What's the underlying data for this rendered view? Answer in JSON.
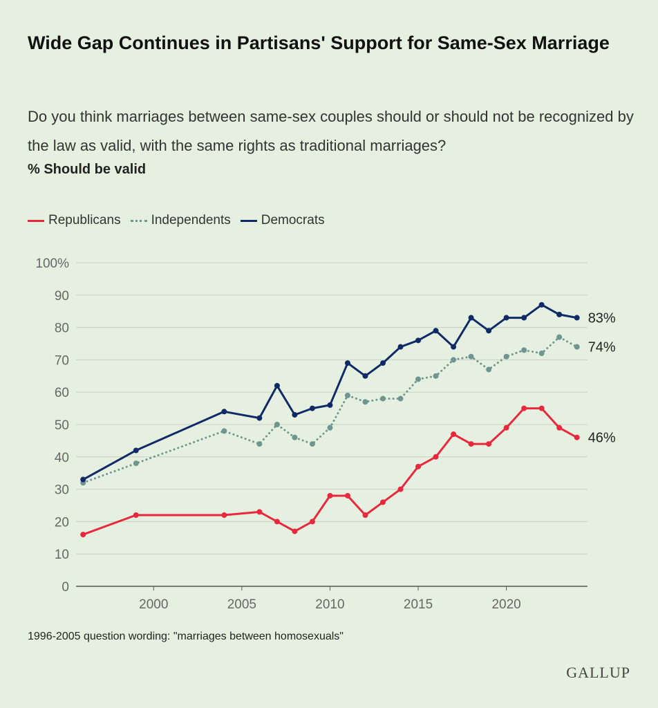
{
  "header": {
    "title": "Wide Gap Continues in Partisans' Support for Same-Sex Marriage",
    "subtitle": "Do you think marriages between same-sex couples should or should not be recognized by the law as valid, with the same rights as traditional marriages?",
    "measure": "% Should be valid"
  },
  "footnote": "1996-2005 question wording: \"marriages between homosexuals\"",
  "brand": "GALLUP",
  "colors": {
    "republicans": "#e8283c",
    "independents": "#6e9590",
    "democrats": "#0f2a66",
    "grid": "#c5d3c0",
    "axis_text": "#666666"
  },
  "chart_data": {
    "type": "line",
    "xlim": [
      1995.6,
      2024.6
    ],
    "ylim": [
      0,
      100
    ],
    "y_ticks": [
      0,
      10,
      20,
      30,
      40,
      50,
      60,
      70,
      80,
      90,
      100
    ],
    "y_tick_labels": [
      "0",
      "10",
      "20",
      "30",
      "40",
      "50",
      "60",
      "70",
      "80",
      "90",
      "100%"
    ],
    "x_ticks": [
      2000,
      2005,
      2010,
      2015,
      2020
    ],
    "x_tick_labels": [
      "2000",
      "2005",
      "2010",
      "2015",
      "2020"
    ],
    "grid": true,
    "legend_position": "top-left",
    "series": [
      {
        "name": "Republicans",
        "style": "solid",
        "color": "#e8283c",
        "end_label": "46%",
        "x": [
          1996,
          1999,
          2004,
          2006,
          2007,
          2008,
          2009,
          2010,
          2011,
          2012,
          2013,
          2014,
          2015,
          2016,
          2017,
          2018,
          2019,
          2020,
          2021,
          2022,
          2023,
          2024
        ],
        "y": [
          16,
          22,
          22,
          23,
          20,
          17,
          20,
          28,
          28,
          22,
          26,
          30,
          37,
          40,
          47,
          44,
          44,
          49,
          55,
          55,
          49,
          46
        ]
      },
      {
        "name": "Independents",
        "style": "dotted",
        "color": "#6e9590",
        "end_label": "74%",
        "x": [
          1996,
          1999,
          2004,
          2006,
          2007,
          2008,
          2009,
          2010,
          2011,
          2012,
          2013,
          2014,
          2015,
          2016,
          2017,
          2018,
          2019,
          2020,
          2021,
          2022,
          2023,
          2024
        ],
        "y": [
          32,
          38,
          48,
          44,
          50,
          46,
          44,
          49,
          59,
          57,
          58,
          58,
          64,
          65,
          70,
          71,
          67,
          71,
          73,
          72,
          77,
          74
        ]
      },
      {
        "name": "Democrats",
        "style": "solid",
        "color": "#0f2a66",
        "end_label": "83%",
        "x": [
          1996,
          1999,
          2004,
          2006,
          2007,
          2008,
          2009,
          2010,
          2011,
          2012,
          2013,
          2014,
          2015,
          2016,
          2017,
          2018,
          2019,
          2020,
          2021,
          2022,
          2023,
          2024
        ],
        "y": [
          33,
          42,
          54,
          52,
          62,
          53,
          55,
          56,
          69,
          65,
          69,
          74,
          76,
          79,
          74,
          83,
          79,
          83,
          83,
          87,
          84,
          83
        ]
      }
    ]
  }
}
